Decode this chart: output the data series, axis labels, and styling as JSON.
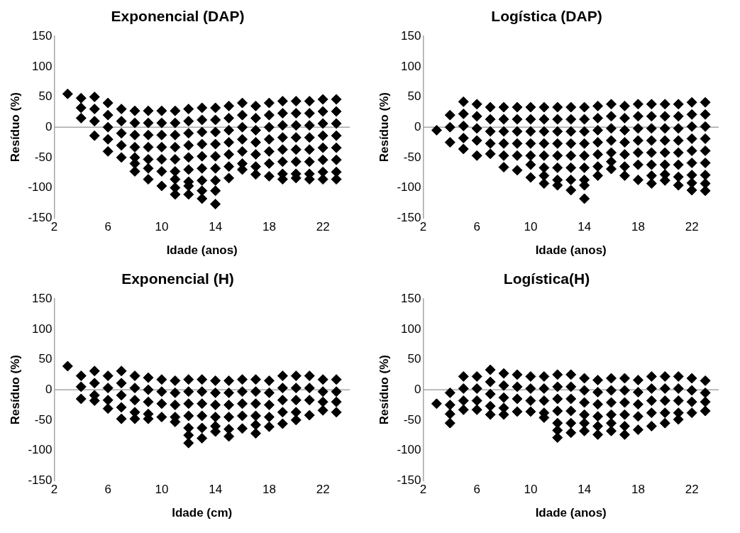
{
  "chart_data": [
    {
      "type": "scatter",
      "title": "Exponencial (DAP)",
      "xlabel": "Idade (anos)",
      "ylabel": "Resíduo (%)",
      "xlim": [
        2,
        24
      ],
      "xticks": [
        2,
        6,
        10,
        14,
        18,
        22
      ],
      "ylim": [
        -150,
        150
      ],
      "yticks": [
        -150,
        -100,
        -50,
        0,
        50,
        100,
        150
      ],
      "grid": false,
      "marker": "diamond",
      "ref_lines": [
        {
          "axis": "y",
          "value": 0,
          "color": "#a6a6a6"
        }
      ],
      "series": [
        {
          "color": "#000000",
          "x": [
            3
          ],
          "values": [
            55
          ]
        },
        {
          "color": "#000000",
          "x": [
            4,
            4,
            4
          ],
          "values": [
            48,
            32,
            15
          ]
        },
        {
          "color": "#000000",
          "x": [
            5,
            5,
            5,
            5
          ],
          "values": [
            50,
            30,
            10,
            -14
          ]
        },
        {
          "color": "#000000",
          "x": [
            6,
            6,
            6,
            6,
            6
          ],
          "values": [
            40,
            20,
            0,
            -20,
            -40
          ]
        },
        {
          "color": "#000000",
          "x": [
            7,
            7,
            7,
            7,
            7
          ],
          "values": [
            30,
            10,
            -10,
            -30,
            -50
          ]
        },
        {
          "color": "#000000",
          "x": [
            8,
            8,
            8,
            8,
            8,
            8,
            8
          ],
          "values": [
            27,
            7,
            -13,
            -33,
            -50,
            -60,
            -73
          ]
        },
        {
          "color": "#000000",
          "x": [
            9,
            9,
            9,
            9,
            9,
            9,
            9
          ],
          "values": [
            27,
            7,
            -13,
            -33,
            -53,
            -68,
            -86
          ]
        },
        {
          "color": "#000000",
          "x": [
            10,
            10,
            10,
            10,
            10,
            10,
            10
          ],
          "values": [
            27,
            7,
            -13,
            -33,
            -53,
            -73,
            -97
          ]
        },
        {
          "color": "#000000",
          "x": [
            11,
            11,
            11,
            11,
            11,
            11,
            11,
            11,
            11
          ],
          "values": [
            27,
            7,
            -13,
            -33,
            -53,
            -73,
            -86,
            -100,
            -111
          ]
        },
        {
          "color": "#000000",
          "x": [
            12,
            12,
            12,
            12,
            12,
            12,
            12,
            12,
            12
          ],
          "values": [
            30,
            10,
            -10,
            -30,
            -50,
            -70,
            -90,
            -97,
            -111
          ]
        },
        {
          "color": "#000000",
          "x": [
            13,
            13,
            13,
            13,
            13,
            13,
            13,
            13,
            13
          ],
          "values": [
            32,
            12,
            -8,
            -28,
            -48,
            -68,
            -88,
            -105,
            -118
          ]
        },
        {
          "color": "#000000",
          "x": [
            14,
            14,
            14,
            14,
            14,
            14,
            14,
            14,
            14
          ],
          "values": [
            32,
            12,
            -8,
            -28,
            -48,
            -68,
            -88,
            -105,
            -127
          ]
        },
        {
          "color": "#000000",
          "x": [
            15,
            15,
            15,
            15,
            15,
            15,
            15
          ],
          "values": [
            35,
            15,
            -5,
            -25,
            -45,
            -65,
            -84
          ]
        },
        {
          "color": "#000000",
          "x": [
            16,
            16,
            16,
            16,
            16,
            16,
            16
          ],
          "values": [
            40,
            20,
            0,
            -20,
            -40,
            -60,
            -70
          ]
        },
        {
          "color": "#000000",
          "x": [
            17,
            17,
            17,
            17,
            17,
            17,
            17
          ],
          "values": [
            35,
            15,
            -5,
            -25,
            -45,
            -65,
            -78
          ]
        },
        {
          "color": "#000000",
          "x": [
            18,
            18,
            18,
            18,
            18,
            18,
            18
          ],
          "values": [
            40,
            20,
            0,
            -20,
            -40,
            -60,
            -81
          ]
        },
        {
          "color": "#000000",
          "x": [
            19,
            19,
            19,
            19,
            19,
            19,
            19,
            19
          ],
          "values": [
            43,
            23,
            3,
            -17,
            -37,
            -57,
            -77,
            -86
          ]
        },
        {
          "color": "#000000",
          "x": [
            20,
            20,
            20,
            20,
            20,
            20,
            20,
            20
          ],
          "values": [
            43,
            23,
            3,
            -17,
            -37,
            -57,
            -77,
            -84
          ]
        },
        {
          "color": "#000000",
          "x": [
            21,
            21,
            21,
            21,
            21,
            21,
            21,
            21
          ],
          "values": [
            43,
            23,
            3,
            -17,
            -37,
            -57,
            -77,
            -86
          ]
        },
        {
          "color": "#000000",
          "x": [
            22,
            22,
            22,
            22,
            22,
            22,
            22,
            22
          ],
          "values": [
            46,
            26,
            6,
            -14,
            -34,
            -54,
            -74,
            -86
          ]
        },
        {
          "color": "#000000",
          "x": [
            23,
            23,
            23,
            23,
            23,
            23,
            23,
            23
          ],
          "values": [
            46,
            26,
            6,
            -14,
            -34,
            -54,
            -74,
            -86
          ]
        }
      ]
    },
    {
      "type": "scatter",
      "title": "Logística (DAP)",
      "xlabel": "Idade (anos)",
      "ylabel": "Resíduo (%)",
      "xlim": [
        2,
        24
      ],
      "xticks": [
        2,
        6,
        10,
        14,
        18,
        22
      ],
      "ylim": [
        -150,
        150
      ],
      "yticks": [
        -150,
        -100,
        -50,
        0,
        50,
        100,
        150
      ],
      "grid": false,
      "marker": "diamond",
      "ref_lines": [
        {
          "axis": "y",
          "value": 0,
          "color": "#a6a6a6"
        }
      ],
      "series": [
        {
          "color": "#000000",
          "x": [
            3
          ],
          "values": [
            -5
          ]
        },
        {
          "color": "#000000",
          "x": [
            4,
            4,
            4
          ],
          "values": [
            20,
            0,
            -25
          ]
        },
        {
          "color": "#000000",
          "x": [
            5,
            5,
            5,
            5,
            5
          ],
          "values": [
            42,
            22,
            2,
            -18,
            -36
          ]
        },
        {
          "color": "#000000",
          "x": [
            6,
            6,
            6,
            6,
            6
          ],
          "values": [
            38,
            18,
            -2,
            -22,
            -47
          ]
        },
        {
          "color": "#000000",
          "x": [
            7,
            7,
            7,
            7,
            7
          ],
          "values": [
            33,
            13,
            -7,
            -27,
            -44
          ]
        },
        {
          "color": "#000000",
          "x": [
            8,
            8,
            8,
            8,
            8,
            8
          ],
          "values": [
            33,
            13,
            -7,
            -27,
            -47,
            -66
          ]
        },
        {
          "color": "#000000",
          "x": [
            9,
            9,
            9,
            9,
            9,
            9
          ],
          "values": [
            33,
            13,
            -7,
            -27,
            -47,
            -71
          ]
        },
        {
          "color": "#000000",
          "x": [
            10,
            10,
            10,
            10,
            10,
            10,
            10
          ],
          "values": [
            33,
            13,
            -7,
            -27,
            -47,
            -62,
            -83
          ]
        },
        {
          "color": "#000000",
          "x": [
            11,
            11,
            11,
            11,
            11,
            11,
            11,
            11
          ],
          "values": [
            33,
            13,
            -7,
            -27,
            -47,
            -67,
            -80,
            -93
          ]
        },
        {
          "color": "#000000",
          "x": [
            12,
            12,
            12,
            12,
            12,
            12,
            12,
            12
          ],
          "values": [
            33,
            13,
            -7,
            -27,
            -47,
            -67,
            -87,
            -96
          ]
        },
        {
          "color": "#000000",
          "x": [
            13,
            13,
            13,
            13,
            13,
            13,
            13,
            13
          ],
          "values": [
            33,
            13,
            -7,
            -27,
            -47,
            -67,
            -87,
            -104
          ]
        },
        {
          "color": "#000000",
          "x": [
            14,
            14,
            14,
            14,
            14,
            14,
            14,
            14,
            14
          ],
          "values": [
            33,
            13,
            -7,
            -27,
            -47,
            -67,
            -87,
            -96,
            -118
          ]
        },
        {
          "color": "#000000",
          "x": [
            15,
            15,
            15,
            15,
            15,
            15,
            15
          ],
          "values": [
            35,
            15,
            -5,
            -25,
            -45,
            -65,
            -80
          ]
        },
        {
          "color": "#000000",
          "x": [
            16,
            16,
            16,
            16,
            16,
            16,
            16
          ],
          "values": [
            38,
            18,
            -2,
            -22,
            -42,
            -57,
            -69
          ]
        },
        {
          "color": "#000000",
          "x": [
            17,
            17,
            17,
            17,
            17,
            17,
            17
          ],
          "values": [
            35,
            15,
            -5,
            -25,
            -45,
            -65,
            -80
          ]
        },
        {
          "color": "#000000",
          "x": [
            18,
            18,
            18,
            18,
            18,
            18,
            18
          ],
          "values": [
            38,
            18,
            -2,
            -22,
            -42,
            -62,
            -87
          ]
        },
        {
          "color": "#000000",
          "x": [
            19,
            19,
            19,
            19,
            19,
            19,
            19,
            19
          ],
          "values": [
            38,
            18,
            -2,
            -22,
            -42,
            -62,
            -80,
            -93
          ]
        },
        {
          "color": "#000000",
          "x": [
            20,
            20,
            20,
            20,
            20,
            20,
            20,
            20
          ],
          "values": [
            38,
            18,
            -2,
            -22,
            -42,
            -62,
            -78,
            -88
          ]
        },
        {
          "color": "#000000",
          "x": [
            21,
            21,
            21,
            21,
            21,
            21,
            21,
            21
          ],
          "values": [
            38,
            18,
            -2,
            -22,
            -42,
            -62,
            -82,
            -96
          ]
        },
        {
          "color": "#000000",
          "x": [
            22,
            22,
            22,
            22,
            22,
            22,
            22,
            22,
            22
          ],
          "values": [
            41,
            21,
            1,
            -19,
            -39,
            -59,
            -79,
            -92,
            -104
          ]
        },
        {
          "color": "#000000",
          "x": [
            23,
            23,
            23,
            23,
            23,
            23,
            23,
            23,
            23
          ],
          "values": [
            41,
            21,
            1,
            -19,
            -39,
            -59,
            -79,
            -93,
            -105
          ]
        }
      ]
    },
    {
      "type": "scatter",
      "title": "Exponencial (H)",
      "xlabel": "Idade (cm)",
      "ylabel": "Resíduo (%)",
      "xlim": [
        2,
        24
      ],
      "xticks": [
        2,
        6,
        10,
        14,
        18,
        22
      ],
      "ylim": [
        -150,
        150
      ],
      "yticks": [
        -150,
        -100,
        -50,
        0,
        50,
        100,
        150
      ],
      "grid": false,
      "marker": "diamond",
      "ref_lines": [
        {
          "axis": "y",
          "value": 0,
          "color": "#a6a6a6"
        }
      ],
      "series": [
        {
          "color": "#000000",
          "x": [
            3
          ],
          "values": [
            39
          ]
        },
        {
          "color": "#000000",
          "x": [
            4,
            4,
            4
          ],
          "values": [
            23,
            5,
            -15
          ]
        },
        {
          "color": "#000000",
          "x": [
            5,
            5,
            5,
            5
          ],
          "values": [
            31,
            11,
            -9,
            -18
          ]
        },
        {
          "color": "#000000",
          "x": [
            6,
            6,
            6,
            6
          ],
          "values": [
            23,
            3,
            -17,
            -31
          ]
        },
        {
          "color": "#000000",
          "x": [
            7,
            7,
            7,
            7,
            7
          ],
          "values": [
            31,
            11,
            -9,
            -29,
            -48
          ]
        },
        {
          "color": "#000000",
          "x": [
            8,
            8,
            8,
            8,
            8
          ],
          "values": [
            23,
            3,
            -17,
            -37,
            -48
          ]
        },
        {
          "color": "#000000",
          "x": [
            9,
            9,
            9,
            9,
            9
          ],
          "values": [
            20,
            0,
            -20,
            -40,
            -48
          ]
        },
        {
          "color": "#000000",
          "x": [
            10,
            10,
            10,
            10
          ],
          "values": [
            17,
            -3,
            -23,
            -45
          ]
        },
        {
          "color": "#000000",
          "x": [
            11,
            11,
            11,
            11,
            11
          ],
          "values": [
            15,
            -5,
            -25,
            -45,
            -53
          ]
        },
        {
          "color": "#000000",
          "x": [
            12,
            12,
            12,
            12,
            12,
            12,
            12
          ],
          "values": [
            17,
            -3,
            -23,
            -43,
            -63,
            -75,
            -88
          ]
        },
        {
          "color": "#000000",
          "x": [
            13,
            13,
            13,
            13,
            13,
            13
          ],
          "values": [
            17,
            -3,
            -23,
            -43,
            -63,
            -80
          ]
        },
        {
          "color": "#000000",
          "x": [
            14,
            14,
            14,
            14,
            14,
            14
          ],
          "values": [
            15,
            -5,
            -25,
            -45,
            -60,
            -69
          ]
        },
        {
          "color": "#000000",
          "x": [
            15,
            15,
            15,
            15,
            15,
            15
          ],
          "values": [
            15,
            -5,
            -25,
            -45,
            -65,
            -77
          ]
        },
        {
          "color": "#000000",
          "x": [
            16,
            16,
            16,
            16,
            16
          ],
          "values": [
            17,
            -3,
            -23,
            -43,
            -64
          ]
        },
        {
          "color": "#000000",
          "x": [
            17,
            17,
            17,
            17,
            17,
            17
          ],
          "values": [
            17,
            -3,
            -23,
            -43,
            -58,
            -72
          ]
        },
        {
          "color": "#000000",
          "x": [
            18,
            18,
            18,
            18,
            18
          ],
          "values": [
            15,
            -5,
            -25,
            -45,
            -61
          ]
        },
        {
          "color": "#000000",
          "x": [
            19,
            19,
            19,
            19,
            19
          ],
          "values": [
            23,
            3,
            -17,
            -37,
            -56
          ]
        },
        {
          "color": "#000000",
          "x": [
            20,
            20,
            20,
            20,
            20
          ],
          "values": [
            23,
            3,
            -17,
            -37,
            -50
          ]
        },
        {
          "color": "#000000",
          "x": [
            21,
            21,
            21,
            21
          ],
          "values": [
            23,
            3,
            -17,
            -42
          ]
        },
        {
          "color": "#000000",
          "x": [
            22,
            22,
            22,
            22
          ],
          "values": [
            17,
            -3,
            -20,
            -34
          ]
        },
        {
          "color": "#000000",
          "x": [
            23,
            23,
            23,
            23
          ],
          "values": [
            17,
            -3,
            -20,
            -37
          ]
        }
      ]
    },
    {
      "type": "scatter",
      "title": "Logística(H)",
      "xlabel": "Idade (anos)",
      "ylabel": "Resíduo (%)",
      "xlim": [
        2,
        24
      ],
      "xticks": [
        2,
        6,
        10,
        14,
        18,
        22
      ],
      "ylim": [
        -150,
        150
      ],
      "yticks": [
        -150,
        -100,
        -50,
        0,
        50,
        100,
        150
      ],
      "grid": false,
      "marker": "diamond",
      "ref_lines": [
        {
          "axis": "y",
          "value": 0,
          "color": "#a6a6a6"
        }
      ],
      "series": [
        {
          "color": "#000000",
          "x": [
            3
          ],
          "values": [
            -23
          ]
        },
        {
          "color": "#000000",
          "x": [
            4,
            4,
            4,
            4
          ],
          "values": [
            -5,
            -25,
            -40,
            -55
          ]
        },
        {
          "color": "#000000",
          "x": [
            5,
            5,
            5,
            5
          ],
          "values": [
            22,
            2,
            -18,
            -33
          ]
        },
        {
          "color": "#000000",
          "x": [
            6,
            6,
            6,
            6
          ],
          "values": [
            22,
            2,
            -18,
            -33
          ]
        },
        {
          "color": "#000000",
          "x": [
            7,
            7,
            7,
            7,
            7
          ],
          "values": [
            33,
            13,
            -7,
            -27,
            -41
          ]
        },
        {
          "color": "#000000",
          "x": [
            8,
            8,
            8,
            8,
            8
          ],
          "values": [
            27,
            7,
            -13,
            -30,
            -41
          ]
        },
        {
          "color": "#000000",
          "x": [
            9,
            9,
            9,
            9
          ],
          "values": [
            25,
            5,
            -15,
            -36
          ]
        },
        {
          "color": "#000000",
          "x": [
            10,
            10,
            10,
            10
          ],
          "values": [
            22,
            2,
            -18,
            -36
          ]
        },
        {
          "color": "#000000",
          "x": [
            11,
            11,
            11,
            11,
            11
          ],
          "values": [
            22,
            2,
            -18,
            -38,
            -46
          ]
        },
        {
          "color": "#000000",
          "x": [
            12,
            12,
            12,
            12,
            12,
            12,
            12
          ],
          "values": [
            25,
            5,
            -15,
            -35,
            -55,
            -67,
            -79
          ]
        },
        {
          "color": "#000000",
          "x": [
            13,
            13,
            13,
            13,
            13,
            13
          ],
          "values": [
            25,
            5,
            -15,
            -35,
            -55,
            -71
          ]
        },
        {
          "color": "#000000",
          "x": [
            14,
            14,
            14,
            14,
            14,
            14
          ],
          "values": [
            19,
            -1,
            -21,
            -41,
            -55,
            -68
          ]
        },
        {
          "color": "#000000",
          "x": [
            15,
            15,
            15,
            15,
            15,
            15
          ],
          "values": [
            16,
            -4,
            -24,
            -44,
            -60,
            -74
          ]
        },
        {
          "color": "#000000",
          "x": [
            16,
            16,
            16,
            16,
            16,
            16
          ],
          "values": [
            19,
            -1,
            -21,
            -41,
            -55,
            -68
          ]
        },
        {
          "color": "#000000",
          "x": [
            17,
            17,
            17,
            17,
            17,
            17
          ],
          "values": [
            19,
            -1,
            -21,
            -41,
            -60,
            -74
          ]
        },
        {
          "color": "#000000",
          "x": [
            18,
            18,
            18,
            18,
            18
          ],
          "values": [
            16,
            -4,
            -24,
            -44,
            -66
          ]
        },
        {
          "color": "#000000",
          "x": [
            19,
            19,
            19,
            19,
            19
          ],
          "values": [
            22,
            2,
            -18,
            -38,
            -60
          ]
        },
        {
          "color": "#000000",
          "x": [
            20,
            20,
            20,
            20,
            20
          ],
          "values": [
            22,
            2,
            -18,
            -38,
            -55
          ]
        },
        {
          "color": "#000000",
          "x": [
            21,
            21,
            21,
            21,
            21
          ],
          "values": [
            22,
            2,
            -18,
            -38,
            -49
          ]
        },
        {
          "color": "#000000",
          "x": [
            22,
            22,
            22,
            22
          ],
          "values": [
            19,
            -1,
            -20,
            -38
          ]
        },
        {
          "color": "#000000",
          "x": [
            23,
            23,
            23,
            23
          ],
          "values": [
            15,
            -5,
            -20,
            -35
          ]
        }
      ]
    }
  ]
}
